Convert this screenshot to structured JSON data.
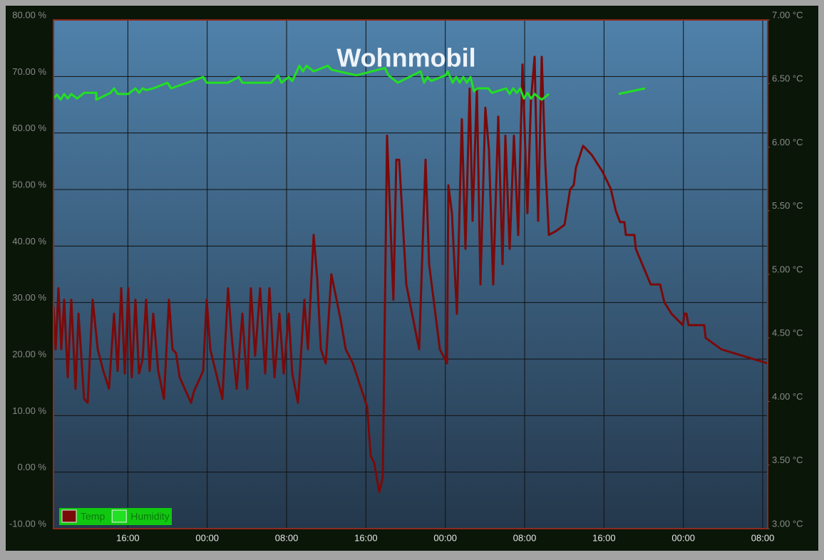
{
  "chart_data": {
    "type": "line",
    "title": "Wohnmobil",
    "xlim": [
      0,
      72
    ],
    "ylim": [
      -10,
      80
    ],
    "y2lim": [
      3,
      7
    ],
    "grid": true,
    "legend": "lower left",
    "xticks": [
      {
        "value": 7.5,
        "label": "16:00"
      },
      {
        "value": 15.5,
        "label": "00:00"
      },
      {
        "value": 23.5,
        "label": "08:00"
      },
      {
        "value": 31.5,
        "label": "16:00"
      },
      {
        "value": 39.5,
        "label": "00:00"
      },
      {
        "value": 47.5,
        "label": "08:00"
      },
      {
        "value": 55.5,
        "label": "16:00"
      },
      {
        "value": 63.5,
        "label": "00:00"
      },
      {
        "value": 71.5,
        "label": "08:00"
      }
    ],
    "yticks": [
      {
        "value": -10,
        "label": "-10.00 %"
      },
      {
        "value": 0,
        "label": "0.00 %"
      },
      {
        "value": 10,
        "label": "10.00 %"
      },
      {
        "value": 20,
        "label": "20.00 %"
      },
      {
        "value": 30,
        "label": "30.00 %"
      },
      {
        "value": 40,
        "label": "40.00 %"
      },
      {
        "value": 50,
        "label": "50.00 %"
      },
      {
        "value": 60,
        "label": "60.00 %"
      },
      {
        "value": 70,
        "label": "70.00 %"
      },
      {
        "value": 80,
        "label": "80.00 %"
      }
    ],
    "y2ticks": [
      {
        "value": 3,
        "label": "3.00 °C"
      },
      {
        "value": 3.5,
        "label": "3.50 °C"
      },
      {
        "value": 4,
        "label": "4.00 °C"
      },
      {
        "value": 4.5,
        "label": "4.50 °C"
      },
      {
        "value": 5,
        "label": "5.00 °C"
      },
      {
        "value": 5.5,
        "label": "5.50 °C"
      },
      {
        "value": 6,
        "label": "6.00 °C"
      },
      {
        "value": 6.5,
        "label": "6.50 °C"
      },
      {
        "value": 7,
        "label": "7.00 °C"
      }
    ],
    "series": [
      {
        "name": "Temp",
        "color": "#7a0a0a",
        "axis": "y2",
        "x": [
          0,
          0.22,
          0.5,
          0.79,
          1.08,
          1.44,
          1.8,
          2.23,
          2.52,
          3.09,
          3.45,
          3.95,
          4.46,
          5.03,
          5.6,
          6.11,
          6.47,
          6.83,
          7.19,
          7.54,
          7.9,
          8.26,
          8.62,
          8.98,
          9.34,
          9.7,
          10.06,
          10.56,
          11.14,
          11.64,
          12.0,
          12.36,
          12.72,
          13.87,
          14.16,
          15.09,
          15.45,
          15.81,
          17.03,
          17.6,
          17.96,
          18.47,
          19.04,
          19.54,
          19.9,
          20.33,
          20.84,
          21.34,
          21.77,
          22.28,
          22.78,
          23.21,
          23.71,
          24.07,
          24.65,
          25.29,
          25.65,
          26.23,
          26.59,
          26.95,
          27.45,
          28.02,
          28.96,
          29.46,
          30.18,
          30.9,
          31.62,
          31.98,
          32.33,
          32.84,
          33.2,
          33.63,
          34.27,
          34.56,
          34.85,
          35.57,
          36.86,
          37.51,
          37.87,
          38.95,
          39.67,
          39.81,
          40.17,
          40.67,
          41.17,
          41.53,
          41.96,
          42.25,
          42.68,
          43.04,
          43.54,
          43.9,
          44.33,
          44.84,
          45.27,
          45.56,
          45.99,
          46.42,
          46.85,
          47.28,
          47.78,
          48.14,
          48.5,
          48.86,
          49.22,
          49.58,
          49.94,
          50.66,
          51.52,
          52.09,
          52.45,
          52.67,
          53.39,
          54.25,
          55.33,
          56.19,
          56.69,
          57.12,
          57.56,
          57.7,
          58.56,
          58.71,
          60.21,
          61.15,
          61.58,
          62.3,
          63.45,
          63.6,
          63.81,
          64.02,
          65.6,
          65.75,
          67.33,
          72
        ],
        "values": [
          4.75,
          4.41,
          4.89,
          4.41,
          4.8,
          4.19,
          4.8,
          4.1,
          4.69,
          4.02,
          3.99,
          4.8,
          4.41,
          4.24,
          4.1,
          4.69,
          4.24,
          4.89,
          4.22,
          4.89,
          4.19,
          4.8,
          4.22,
          4.33,
          4.8,
          4.24,
          4.69,
          4.24,
          4.02,
          4.8,
          4.41,
          4.38,
          4.19,
          3.99,
          4.08,
          4.24,
          4.8,
          4.41,
          4.02,
          4.89,
          4.52,
          4.1,
          4.69,
          4.1,
          4.89,
          4.36,
          4.89,
          4.22,
          4.89,
          4.19,
          4.69,
          4.22,
          4.69,
          4.22,
          3.99,
          4.8,
          4.41,
          5.31,
          4.97,
          4.41,
          4.3,
          5.0,
          4.64,
          4.41,
          4.3,
          4.13,
          3.96,
          3.57,
          3.52,
          3.29,
          3.4,
          6.09,
          4.8,
          5.9,
          5.9,
          4.92,
          4.41,
          5.9,
          5.08,
          4.41,
          4.3,
          5.7,
          5.48,
          4.69,
          6.22,
          5.2,
          6.46,
          5.42,
          6.46,
          4.92,
          6.31,
          5.98,
          4.92,
          6.24,
          5.08,
          6.09,
          5.2,
          6.09,
          5.31,
          6.65,
          5.48,
          6.37,
          6.71,
          5.42,
          6.71,
          5.87,
          5.31,
          5.34,
          5.39,
          5.67,
          5.7,
          5.84,
          6.01,
          5.94,
          5.81,
          5.67,
          5.5,
          5.41,
          5.41,
          5.31,
          5.31,
          5.2,
          4.92,
          4.92,
          4.78,
          4.69,
          4.6,
          4.69,
          4.69,
          4.6,
          4.6,
          4.5,
          4.41,
          4.3
        ]
      },
      {
        "name": "Humidity",
        "color": "#22e022",
        "x": [
          0,
          0.36,
          0.72,
          1.08,
          1.44,
          1.8,
          2.37,
          3.09,
          4.31,
          4.31,
          5.75,
          6.11,
          6.47,
          7.54,
          8.26,
          8.62,
          8.98,
          9.34,
          10.06,
          11.5,
          11.86,
          15.09,
          15.45,
          17.6,
          18.68,
          19.04,
          21.92,
          22.63,
          22.99,
          23.71,
          24.07,
          24.79,
          25.15,
          25.51,
          26.23,
          27.66,
          28.02,
          30.54,
          33.41,
          33.77,
          34.71,
          37.0,
          37.36,
          37.72,
          38.08,
          39.52,
          39.74,
          40.24,
          40.6,
          40.96,
          41.32,
          41.68,
          42.04,
          42.39,
          42.75,
          43.83,
          44.19,
          45.63,
          45.99,
          46.35,
          46.71,
          47.06,
          47.42,
          47.78,
          48.14,
          48.5,
          49.22,
          49.94,
          53,
          56.98,
          59.64
        ],
        "values": [
          66.1,
          66.8,
          65.9,
          66.9,
          66.1,
          66.9,
          66.1,
          67.1,
          67.1,
          65.9,
          67.1,
          67.9,
          66.9,
          66.9,
          67.9,
          67.1,
          67.9,
          67.6,
          67.9,
          68.9,
          67.9,
          69.9,
          68.9,
          68.9,
          69.9,
          68.9,
          68.9,
          70.2,
          68.9,
          69.9,
          69.2,
          71.9,
          70.9,
          71.9,
          70.9,
          71.9,
          71.2,
          70.2,
          71.5,
          70.2,
          68.9,
          70.9,
          68.9,
          69.9,
          69.2,
          70.2,
          70.9,
          68.9,
          69.9,
          68.9,
          69.9,
          68.9,
          69.9,
          67.4,
          67.9,
          67.9,
          67.1,
          67.9,
          66.9,
          67.9,
          67.1,
          67.9,
          66.1,
          67.1,
          66.1,
          66.9,
          65.9,
          66.9,
          null,
          66.9,
          67.9
        ]
      }
    ]
  }
}
